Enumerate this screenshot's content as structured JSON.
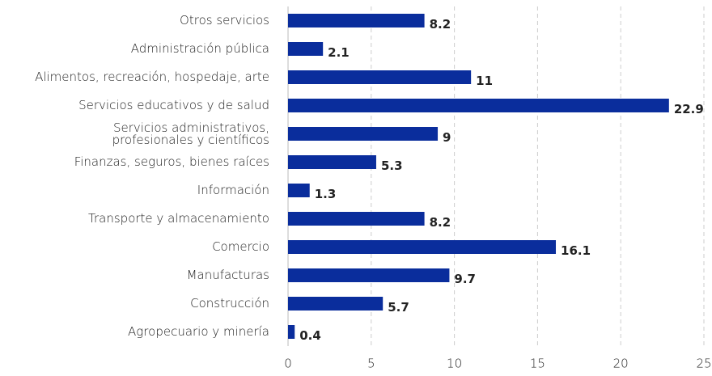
{
  "chart_data": {
    "type": "bar",
    "orientation": "horizontal",
    "categories": [
      "Otros servicios",
      "Administración pública",
      "Alimentos, recreación, hospedaje, arte",
      "Servicios educativos y de salud",
      "Servicios administrativos,\nprofesionales y científicos",
      "Finanzas, seguros, bienes raíces",
      "Información",
      "Transporte y almacenamiento",
      "Comercio",
      "Manufacturas",
      "Construcción",
      "Agropecuario y minería"
    ],
    "values": [
      8.2,
      2.1,
      11,
      22.9,
      9,
      5.3,
      1.3,
      8.2,
      16.1,
      9.7,
      5.7,
      0.4
    ],
    "color": "#0a2d9c",
    "xlim": [
      0,
      25
    ],
    "xticks": [
      0,
      5,
      10,
      15,
      20,
      25
    ],
    "grid": true
  }
}
